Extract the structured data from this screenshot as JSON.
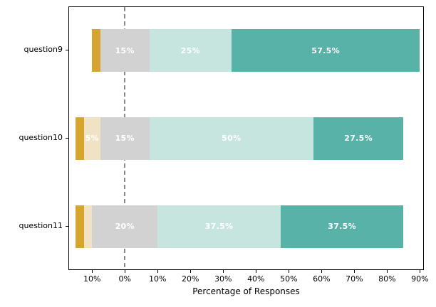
{
  "figure": {
    "background": "#ffffff"
  },
  "chart_data": {
    "type": "bar",
    "variant": "diverging-stacked-horizontal-likert",
    "title": "",
    "xlabel": "Percentage of Responses",
    "ylabel": "",
    "categories": [
      "question9",
      "question10",
      "question11"
    ],
    "series": [
      {
        "name": "gold",
        "color": "#D5A52F",
        "values": [
          2.5,
          2.5,
          2.5
        ]
      },
      {
        "name": "cream",
        "color": "#F0E2C3",
        "values": [
          0,
          5,
          2.5
        ]
      },
      {
        "name": "gray-neutral",
        "color": "#D2D2D2",
        "values": [
          15,
          15,
          20
        ]
      },
      {
        "name": "light-teal",
        "color": "#C6E5DE",
        "values": [
          25,
          50,
          37.5
        ]
      },
      {
        "name": "teal",
        "color": "#58B2A8",
        "values": [
          57.5,
          27.5,
          37.5
        ]
      }
    ],
    "segment_labels": [
      [
        "",
        "",
        "15%",
        "25%",
        "57.5%"
      ],
      [
        "",
        "5%",
        "15%",
        "50%",
        "27.5%"
      ],
      [
        "",
        "",
        "20%",
        "37.5%",
        "37.5%"
      ]
    ],
    "neutral_index": 2,
    "baseline": "neutral-centered-on-zero",
    "xlim": [
      -17.0,
      91.0
    ],
    "xticks": [
      {
        "value": -10,
        "label": "10%"
      },
      {
        "value": 0,
        "label": "0%"
      },
      {
        "value": 10,
        "label": "10%"
      },
      {
        "value": 20,
        "label": "20%"
      },
      {
        "value": 30,
        "label": "30%"
      },
      {
        "value": 40,
        "label": "40%"
      },
      {
        "value": 50,
        "label": "50%"
      },
      {
        "value": 60,
        "label": "60%"
      },
      {
        "value": 70,
        "label": "70%"
      },
      {
        "value": 80,
        "label": "80%"
      },
      {
        "value": 90,
        "label": "90%"
      }
    ],
    "zero_line": {
      "value": 0,
      "style": "dashed",
      "color": "#8A8A8A"
    },
    "segment_label_color": "#ffffff",
    "grid": false,
    "legend": false
  }
}
